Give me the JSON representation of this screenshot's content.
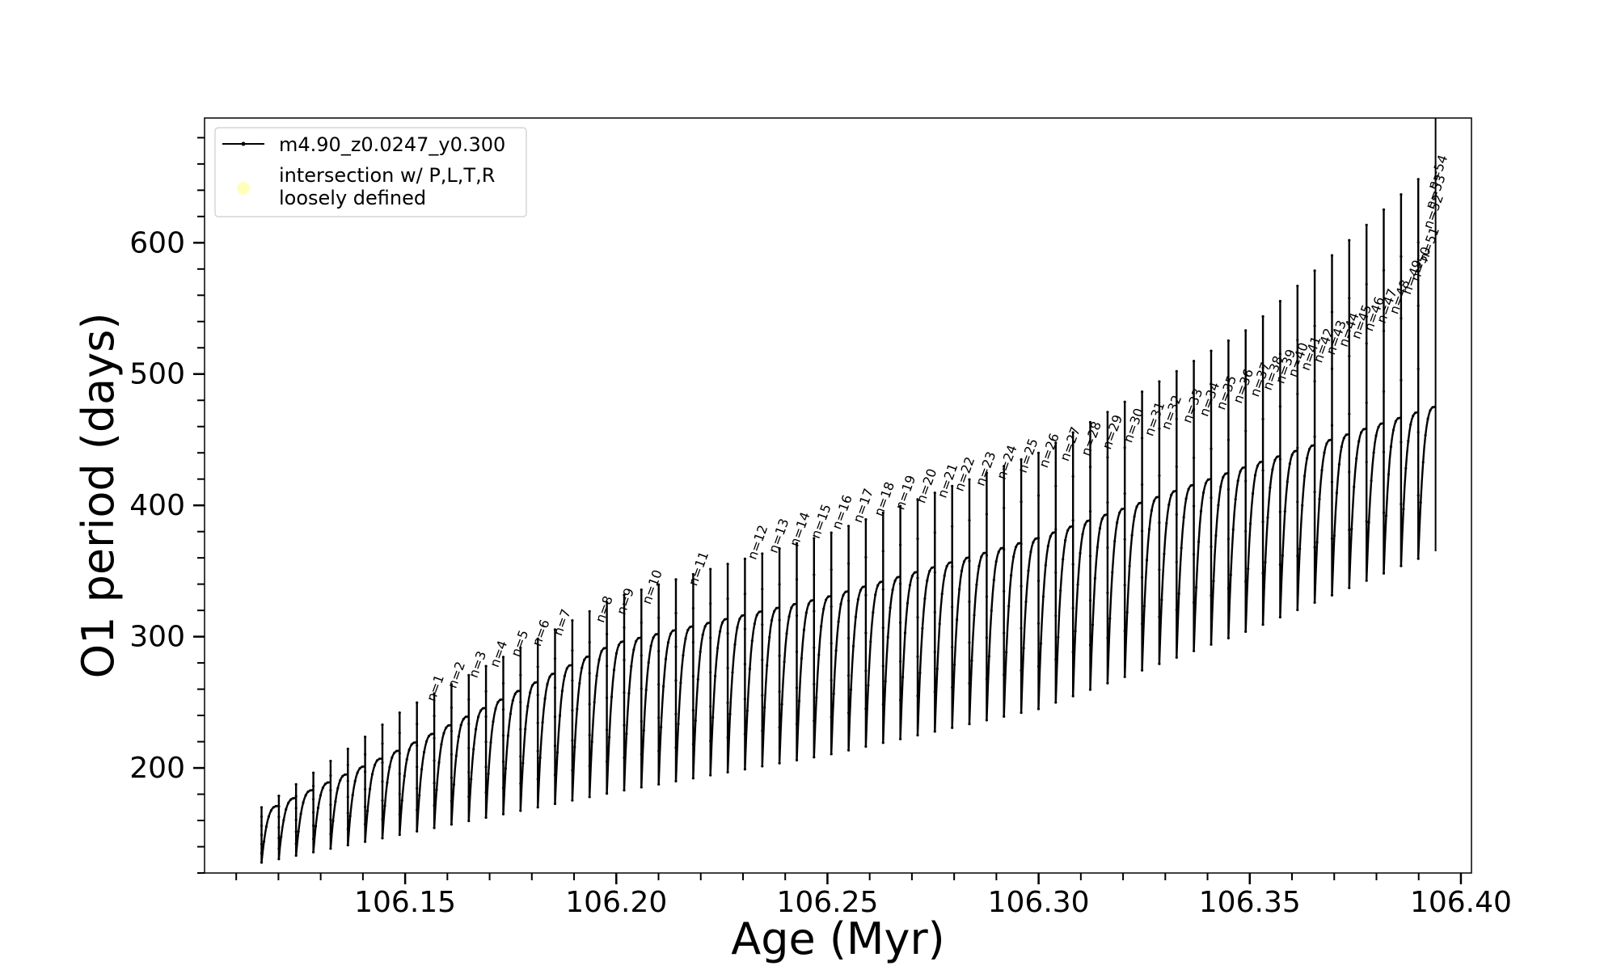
{
  "chart_data": {
    "type": "line",
    "title": "",
    "xlabel": "Age (Myr)",
    "ylabel": "O1 period (days)",
    "xlim": [
      106.1025,
      106.4025
    ],
    "ylim": [
      120,
      695
    ],
    "x_ticks": [
      "106.15",
      "106.20",
      "106.25",
      "106.30",
      "106.35",
      "106.40"
    ],
    "y_ticks": [
      "200",
      "300",
      "400",
      "500",
      "600"
    ],
    "grid": false,
    "legend": {
      "placement": "upper-left",
      "entries": [
        {
          "label": "m4.90_z0.0247_y0.300",
          "marker": "line-dot",
          "color": "#000000"
        },
        {
          "label": "intersection w/ P,L,T,R\nloosely defined",
          "marker": "circle",
          "color": "#ffffb3"
        }
      ]
    },
    "colors": {
      "series": "#000000",
      "intersection": "#ffffb3"
    },
    "series": [
      {
        "name": "m4.90_z0.0247_y0.300",
        "description_of_shape": "thermal-pulse sawtooth: each cycle rises to an envelope maximum then drops to a minimum, with a vertical spike at each pulse",
        "cycles": {
          "start_age": 106.116,
          "end_age": 106.394,
          "cycle_count": 68,
          "upper_envelope": [
            [
              106.116,
              165
            ],
            [
              106.15,
              215
            ],
            [
              106.2,
              295
            ],
            [
              106.25,
              330
            ],
            [
              106.3,
              375
            ],
            [
              106.35,
              430
            ],
            [
              106.394,
              475
            ]
          ],
          "lower_envelope": [
            [
              106.116,
              128
            ],
            [
              106.15,
              150
            ],
            [
              106.2,
              182
            ],
            [
              106.25,
              210
            ],
            [
              106.3,
              245
            ],
            [
              106.35,
              305
            ],
            [
              106.394,
              365
            ]
          ],
          "spike_envelope": [
            [
              106.116,
              170
            ],
            [
              106.13,
              200
            ],
            [
              106.15,
              245
            ],
            [
              106.2,
              330
            ],
            [
              106.25,
              378
            ],
            [
              106.3,
              440
            ],
            [
              106.35,
              535
            ],
            [
              106.394,
              660
            ]
          ]
        }
      }
    ],
    "annotations": [
      {
        "text": "n=1",
        "x": 106.157,
        "y": 250
      },
      {
        "text": "n=2",
        "x": 106.162,
        "y": 260
      },
      {
        "text": "n=3",
        "x": 106.167,
        "y": 268
      },
      {
        "text": "n=4",
        "x": 106.172,
        "y": 276
      },
      {
        "text": "n=5",
        "x": 106.177,
        "y": 284
      },
      {
        "text": "n=6",
        "x": 106.182,
        "y": 292
      },
      {
        "text": "n=7",
        "x": 106.187,
        "y": 300
      },
      {
        "text": "n=8",
        "x": 106.197,
        "y": 310
      },
      {
        "text": "n=9",
        "x": 106.202,
        "y": 316
      },
      {
        "text": "n=10",
        "x": 106.208,
        "y": 324
      },
      {
        "text": "n=11",
        "x": 106.219,
        "y": 338
      },
      {
        "text": "n=12",
        "x": 106.233,
        "y": 358
      },
      {
        "text": "n=13",
        "x": 106.238,
        "y": 363
      },
      {
        "text": "n=14",
        "x": 106.243,
        "y": 368
      },
      {
        "text": "n=15",
        "x": 106.248,
        "y": 374
      },
      {
        "text": "n=16",
        "x": 106.253,
        "y": 381
      },
      {
        "text": "n=17",
        "x": 106.258,
        "y": 386
      },
      {
        "text": "n=18",
        "x": 106.263,
        "y": 391
      },
      {
        "text": "n=19",
        "x": 106.268,
        "y": 396
      },
      {
        "text": "n=20",
        "x": 106.273,
        "y": 401
      },
      {
        "text": "n=21",
        "x": 106.278,
        "y": 405
      },
      {
        "text": "n=22",
        "x": 106.282,
        "y": 410
      },
      {
        "text": "n=23",
        "x": 106.287,
        "y": 414
      },
      {
        "text": "n=24",
        "x": 106.292,
        "y": 419
      },
      {
        "text": "n=25",
        "x": 106.297,
        "y": 424
      },
      {
        "text": "n=26",
        "x": 106.302,
        "y": 428
      },
      {
        "text": "n=27",
        "x": 106.307,
        "y": 433
      },
      {
        "text": "n=28",
        "x": 106.312,
        "y": 437
      },
      {
        "text": "n=29",
        "x": 106.317,
        "y": 442
      },
      {
        "text": "n=30",
        "x": 106.322,
        "y": 447
      },
      {
        "text": "n=31",
        "x": 106.327,
        "y": 452
      },
      {
        "text": "n=32",
        "x": 106.331,
        "y": 457
      },
      {
        "text": "n=33",
        "x": 106.336,
        "y": 462
      },
      {
        "text": "n=34",
        "x": 106.34,
        "y": 467
      },
      {
        "text": "n=35",
        "x": 106.344,
        "y": 472
      },
      {
        "text": "n=36",
        "x": 106.348,
        "y": 477
      },
      {
        "text": "n=37",
        "x": 106.352,
        "y": 482
      },
      {
        "text": "n=38",
        "x": 106.355,
        "y": 487
      },
      {
        "text": "n=39",
        "x": 106.358,
        "y": 492
      },
      {
        "text": "n=40",
        "x": 106.361,
        "y": 497
      },
      {
        "text": "n=41",
        "x": 106.364,
        "y": 502
      },
      {
        "text": "n=42",
        "x": 106.367,
        "y": 508
      },
      {
        "text": "n=43",
        "x": 106.37,
        "y": 514
      },
      {
        "text": "n=44",
        "x": 106.373,
        "y": 520
      },
      {
        "text": "n=45",
        "x": 106.376,
        "y": 526
      },
      {
        "text": "n=46",
        "x": 106.379,
        "y": 532
      },
      {
        "text": "n=47",
        "x": 106.382,
        "y": 538
      },
      {
        "text": "n=48",
        "x": 106.385,
        "y": 545
      },
      {
        "text": "n=49",
        "x": 106.388,
        "y": 560
      },
      {
        "text": "n=50",
        "x": 106.39,
        "y": 570
      },
      {
        "text": "n=51",
        "x": 106.392,
        "y": 585
      },
      {
        "text": "n=52",
        "x": 106.393,
        "y": 610
      },
      {
        "text": "n=53",
        "x": 106.3935,
        "y": 625
      },
      {
        "text": "n=54",
        "x": 106.394,
        "y": 640
      }
    ]
  }
}
